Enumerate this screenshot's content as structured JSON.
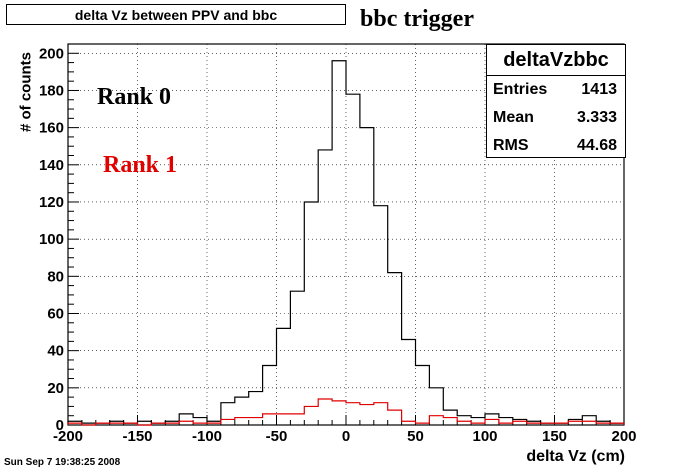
{
  "header": {
    "title": "delta Vz between PPV and bbc",
    "subtitle": "bbc trigger"
  },
  "annotations": {
    "rank0": "Rank 0",
    "rank1": "Rank 1"
  },
  "stats_box": {
    "name": "deltaVzbbc",
    "rows": [
      {
        "label": "Entries",
        "value": "1413"
      },
      {
        "label": "Mean",
        "value": "3.333"
      },
      {
        "label": "RMS",
        "value": "44.68"
      }
    ]
  },
  "footer": {
    "timestamp": "Sun Sep  7 19:38:25 2008"
  },
  "colors": {
    "rank0": "#000000",
    "rank1": "#e00000",
    "grid": "#000000"
  },
  "chart_data": {
    "type": "line",
    "style": "step-histogram",
    "title": "delta Vz between PPV and bbc",
    "xlabel": "delta Vz (cm)",
    "ylabel": "# of counts",
    "xlim": [
      -200,
      200
    ],
    "ylim": [
      0,
      205
    ],
    "xticks": [
      -200,
      -150,
      -100,
      -50,
      0,
      50,
      100,
      150,
      200
    ],
    "yticks": [
      0,
      20,
      40,
      60,
      80,
      100,
      120,
      140,
      160,
      180,
      200
    ],
    "grid": true,
    "bin_edges": [
      -200,
      -190,
      -180,
      -170,
      -160,
      -150,
      -140,
      -130,
      -120,
      -110,
      -100,
      -90,
      -80,
      -70,
      -60,
      -50,
      -40,
      -30,
      -20,
      -10,
      0,
      10,
      20,
      30,
      40,
      50,
      60,
      70,
      80,
      90,
      100,
      110,
      120,
      130,
      140,
      150,
      160,
      170,
      180,
      190,
      200
    ],
    "series": [
      {
        "name": "Rank 0",
        "color": "#000000",
        "values": [
          2,
          1,
          1,
          2,
          1,
          2,
          1,
          2,
          6,
          4,
          2,
          12,
          15,
          18,
          32,
          52,
          72,
          120,
          148,
          196,
          178,
          160,
          118,
          82,
          46,
          32,
          20,
          8,
          5,
          4,
          6,
          4,
          3,
          2,
          1,
          1,
          3,
          5,
          2,
          1
        ]
      },
      {
        "name": "Rank 1",
        "color": "#e00000",
        "values": [
          1,
          0,
          1,
          1,
          1,
          0,
          1,
          1,
          2,
          1,
          1,
          3,
          4,
          4,
          6,
          6,
          6,
          10,
          14,
          13,
          12,
          11,
          12,
          8,
          2,
          1,
          5,
          4,
          2,
          1,
          3,
          1,
          2,
          1,
          1,
          1,
          2,
          2,
          1,
          1
        ]
      }
    ]
  }
}
